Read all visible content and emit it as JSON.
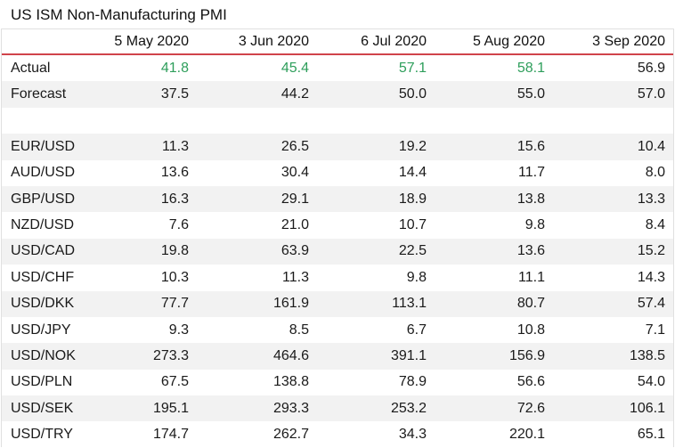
{
  "title": "US ISM Non-Manufacturing PMI",
  "columns": [
    "",
    "5 May 2020",
    "3 Jun 2020",
    "6 Jul 2020",
    "5 Aug 2020",
    "3 Sep 2020"
  ],
  "colors": {
    "header_rule": "#d0434a",
    "positive": "#2e9e5b",
    "stripe": "#f2f2f2"
  },
  "rows": [
    {
      "label": "Actual",
      "values": [
        "41.8",
        "45.4",
        "57.1",
        "58.1",
        "56.9"
      ],
      "beat": [
        true,
        true,
        true,
        true,
        false
      ]
    },
    {
      "label": "Forecast",
      "values": [
        "37.5",
        "44.2",
        "50.0",
        "55.0",
        "57.0"
      ]
    },
    {
      "label": "",
      "values": [
        "",
        "",
        "",
        "",
        ""
      ]
    },
    {
      "label": "EUR/USD",
      "values": [
        "11.3",
        "26.5",
        "19.2",
        "15.6",
        "10.4"
      ]
    },
    {
      "label": "AUD/USD",
      "values": [
        "13.6",
        "30.4",
        "14.4",
        "11.7",
        "8.0"
      ]
    },
    {
      "label": "GBP/USD",
      "values": [
        "16.3",
        "29.1",
        "18.9",
        "13.8",
        "13.3"
      ]
    },
    {
      "label": "NZD/USD",
      "values": [
        "7.6",
        "21.0",
        "10.7",
        "9.8",
        "8.4"
      ]
    },
    {
      "label": "USD/CAD",
      "values": [
        "19.8",
        "63.9",
        "22.5",
        "13.6",
        "15.2"
      ]
    },
    {
      "label": "USD/CHF",
      "values": [
        "10.3",
        "11.3",
        "9.8",
        "11.1",
        "14.3"
      ]
    },
    {
      "label": "USD/DKK",
      "values": [
        "77.7",
        "161.9",
        "113.1",
        "80.7",
        "57.4"
      ]
    },
    {
      "label": "USD/JPY",
      "values": [
        "9.3",
        "8.5",
        "6.7",
        "10.8",
        "7.1"
      ]
    },
    {
      "label": "USD/NOK",
      "values": [
        "273.3",
        "464.6",
        "391.1",
        "156.9",
        "138.5"
      ]
    },
    {
      "label": "USD/PLN",
      "values": [
        "67.5",
        "138.8",
        "78.9",
        "56.6",
        "54.0"
      ]
    },
    {
      "label": "USD/SEK",
      "values": [
        "195.1",
        "293.3",
        "253.2",
        "72.6",
        "106.1"
      ]
    },
    {
      "label": "USD/TRY",
      "values": [
        "174.7",
        "262.7",
        "34.3",
        "220.1",
        "65.1"
      ]
    }
  ]
}
